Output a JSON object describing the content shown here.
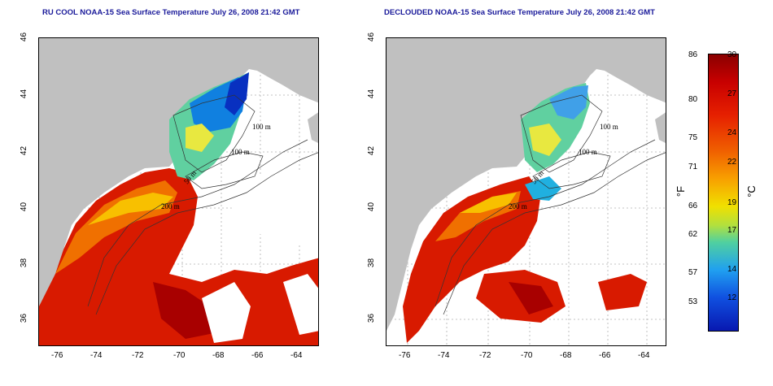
{
  "panels": [
    {
      "title": "RU COOL NOAA-15 Sea Surface Temperature July 26, 2008 21:42 GMT"
    },
    {
      "title": "DECLOUDED NOAA-15 Sea Surface Temperature July 26, 2008 21:42 GMT"
    }
  ],
  "axes": {
    "x_ticks": [
      "-76",
      "-74",
      "-72",
      "-70",
      "-68",
      "-66",
      "-64"
    ],
    "y_ticks": [
      "46",
      "44",
      "42",
      "40",
      "38",
      "36"
    ]
  },
  "isobaths": {
    "left": [
      "100 m",
      "100 m",
      "50 m",
      "200 m"
    ],
    "right": [
      "100 m",
      "100 m",
      "50 m",
      "200 m"
    ]
  },
  "colorbar": {
    "f_ticks": [
      "86",
      "80",
      "75",
      "71",
      "66",
      "62",
      "57",
      "53"
    ],
    "c_ticks": [
      "30",
      "27",
      "24",
      "22",
      "19",
      "17",
      "14",
      "12"
    ],
    "f_unit": "°F",
    "c_unit": "°C"
  },
  "colors": {
    "land": "#c0c0c0",
    "title": "#1a1a9a",
    "warm": "#d81a00",
    "cool": "#1060e0"
  }
}
